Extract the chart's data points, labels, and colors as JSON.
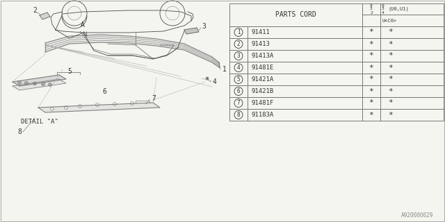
{
  "bg_color": "#f5f5f0",
  "table_title": "PARTS CORD",
  "parts": [
    {
      "num": 1,
      "code": "91411"
    },
    {
      "num": 2,
      "code": "91413"
    },
    {
      "num": 3,
      "code": "91413A"
    },
    {
      "num": 4,
      "code": "91481E"
    },
    {
      "num": 5,
      "code": "91421A"
    },
    {
      "num": 6,
      "code": "91421B"
    },
    {
      "num": 7,
      "code": "91481F"
    },
    {
      "num": 8,
      "code": "91183A"
    }
  ],
  "footnote": "A920000029",
  "detail_label": "DETAIL \"A\"",
  "point_label": "A",
  "line_color": "#777777",
  "text_color": "#333333"
}
